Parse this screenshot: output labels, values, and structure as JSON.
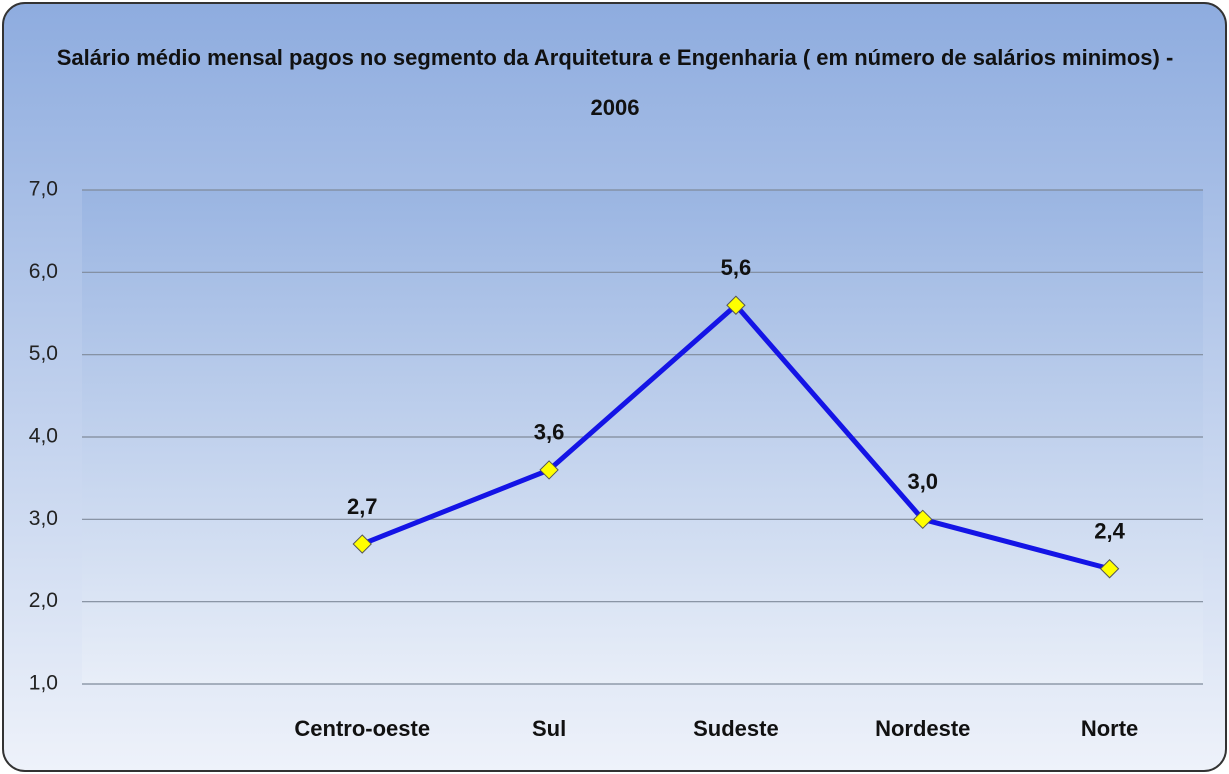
{
  "chart_data": {
    "type": "line",
    "title": "Salário médio mensal pagos no segmento da Arquitetura e Engenharia ( em número de salários minimos) - 2006",
    "categories": [
      null,
      "Centro-oeste",
      "Sul",
      "Sudeste",
      "Nordeste",
      "Norte"
    ],
    "values": [
      null,
      2.7,
      3.6,
      5.6,
      3.0,
      2.4
    ],
    "value_labels": [
      null,
      "2,7",
      "3,6",
      "5,6",
      "3,0",
      "2,4"
    ],
    "color": "#1414e6",
    "marker_color": "#ffff00",
    "ylim": [
      1,
      7
    ],
    "yticks": [
      {
        "value": 1,
        "label": "1,0"
      },
      {
        "value": 2,
        "label": "2,0"
      },
      {
        "value": 3,
        "label": "3,0"
      },
      {
        "value": 4,
        "label": "4,0"
      },
      {
        "value": 5,
        "label": "5,0"
      },
      {
        "value": 6,
        "label": "6,0"
      },
      {
        "value": 7,
        "label": "7,0"
      }
    ],
    "grid": true
  }
}
